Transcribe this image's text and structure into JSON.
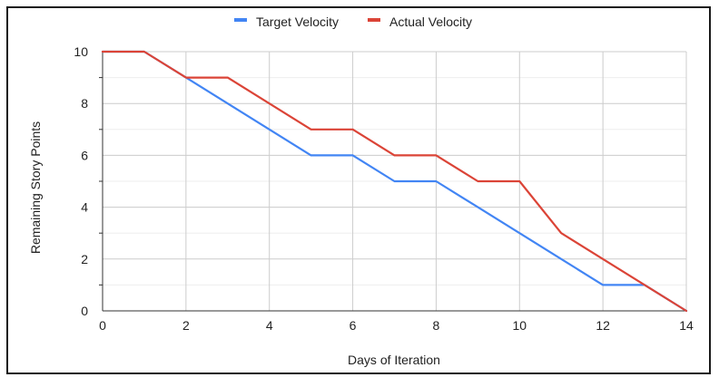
{
  "chart_data": {
    "type": "line",
    "title": "",
    "xlabel": "Days of Iteration",
    "ylabel": "Remaining Story Points",
    "xlim": [
      0,
      14
    ],
    "ylim": [
      0,
      10
    ],
    "x_ticks": [
      0,
      2,
      4,
      6,
      8,
      10,
      12,
      14
    ],
    "y_ticks": [
      0,
      2,
      4,
      6,
      8,
      10
    ],
    "grid": true,
    "legend_position": "top",
    "x": [
      0,
      1,
      2,
      3,
      4,
      5,
      6,
      7,
      8,
      9,
      10,
      11,
      12,
      13,
      14
    ],
    "series": [
      {
        "name": "Target Velocity",
        "color": "#4285f4",
        "values": [
          10,
          10,
          9,
          8,
          7,
          6,
          6,
          5,
          5,
          4,
          3,
          2,
          1,
          1,
          0
        ]
      },
      {
        "name": "Actual Velocity",
        "color": "#db4437",
        "values": [
          10,
          10,
          9,
          9,
          8,
          7,
          7,
          6,
          6,
          5,
          5,
          3,
          2,
          1,
          0
        ]
      }
    ]
  }
}
